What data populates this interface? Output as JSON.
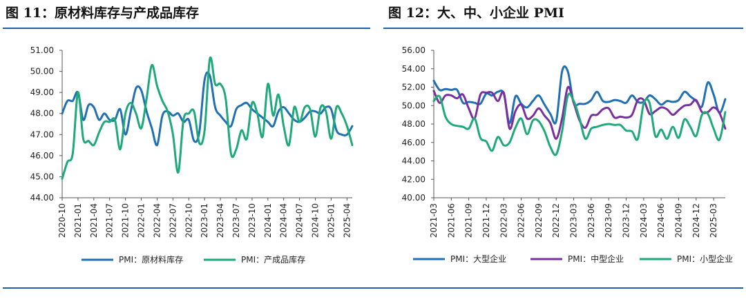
{
  "titles": {
    "left": "图 11：原材料库存与产成品库存",
    "right": "图 12：大、中、小企业 PMI"
  },
  "colors": {
    "blue": "#1f6fb5",
    "green": "#1ea97a",
    "purple": "#7a2fa0",
    "rule": "#1a5fa8"
  },
  "chart_data": [
    {
      "type": "line",
      "ylim": [
        44,
        51
      ],
      "y_ticks": [
        "44.00",
        "45.00",
        "46.00",
        "47.00",
        "48.00",
        "49.00",
        "50.00",
        "51.00"
      ],
      "x_tick_labels": [
        "2020-10",
        "2021-01",
        "2021-04",
        "2021-07",
        "2021-10",
        "2022-01",
        "2022-04",
        "2022-07",
        "2022-10",
        "2023-01",
        "2023-04",
        "2023-07",
        "2023-10",
        "2024-01",
        "2024-04",
        "2024-07",
        "2024-10",
        "2025-01",
        "2025-04"
      ],
      "x": [
        "2020-10",
        "2020-11",
        "2020-12",
        "2021-01",
        "2021-02",
        "2021-03",
        "2021-04",
        "2021-05",
        "2021-06",
        "2021-07",
        "2021-08",
        "2021-09",
        "2021-10",
        "2021-11",
        "2021-12",
        "2022-01",
        "2022-02",
        "2022-03",
        "2022-04",
        "2022-05",
        "2022-06",
        "2022-07",
        "2022-08",
        "2022-09",
        "2022-10",
        "2022-11",
        "2022-12",
        "2023-01",
        "2023-02",
        "2023-03",
        "2023-04",
        "2023-05",
        "2023-06",
        "2023-07",
        "2023-08",
        "2023-09",
        "2023-10",
        "2023-11",
        "2023-12",
        "2024-01",
        "2024-02",
        "2024-03",
        "2024-04",
        "2024-05",
        "2024-06",
        "2024-07",
        "2024-08",
        "2024-09",
        "2024-10",
        "2024-11",
        "2024-12",
        "2025-01",
        "2025-02",
        "2025-03",
        "2025-04",
        "2025-05"
      ],
      "series": [
        {
          "name": "PMI：原材料库存",
          "color": "#1f6fb5",
          "values": [
            48.0,
            48.6,
            48.6,
            49.0,
            47.7,
            48.4,
            48.3,
            47.7,
            48.0,
            47.7,
            47.7,
            48.2,
            47.0,
            48.1,
            49.2,
            49.1,
            48.1,
            47.3,
            46.5,
            47.9,
            48.1,
            47.9,
            48.0,
            47.6,
            47.7,
            46.7,
            47.1,
            49.6,
            49.8,
            48.3,
            47.9,
            47.6,
            47.4,
            48.2,
            48.4,
            48.5,
            48.2,
            48.0,
            47.8,
            47.6,
            47.4,
            48.1,
            48.3,
            48.0,
            47.7,
            47.6,
            47.8,
            48.1,
            48.1,
            48.0,
            48.3,
            48.2,
            47.2,
            47.0,
            47.0,
            47.4
          ]
        },
        {
          "name": "PMI：产成品库存",
          "color": "#1ea97a",
          "values": [
            44.9,
            45.7,
            46.1,
            49.0,
            46.8,
            46.7,
            46.5,
            47.1,
            47.6,
            47.6,
            47.7,
            46.3,
            48.0,
            48.5,
            48.0,
            47.3,
            48.7,
            50.3,
            49.3,
            48.6,
            48.1,
            47.0,
            45.2,
            47.7,
            48.0,
            48.1,
            46.6,
            47.2,
            50.6,
            49.4,
            49.4,
            48.7,
            46.1,
            46.3,
            47.2,
            46.8,
            48.5,
            48.0,
            46.9,
            49.4,
            47.9,
            48.9,
            47.4,
            46.5,
            48.3,
            47.6,
            48.3,
            48.2,
            46.9,
            48.3,
            48.1,
            46.8,
            48.3,
            48.0,
            47.4,
            46.5
          ]
        }
      ],
      "legend": "bottom"
    },
    {
      "type": "line",
      "ylim": [
        40,
        56
      ],
      "y_ticks": [
        "40.00",
        "42.00",
        "44.00",
        "46.00",
        "48.00",
        "50.00",
        "52.00",
        "54.00",
        "56.00"
      ],
      "x_tick_labels": [
        "2021-03",
        "2021-06",
        "2021-09",
        "2021-12",
        "2022-03",
        "2022-06",
        "2022-09",
        "2022-12",
        "2023-03",
        "2023-06",
        "2023-09",
        "2023-12",
        "2024-03",
        "2024-06",
        "2024-09",
        "2024-12",
        "2025-03"
      ],
      "x": [
        "2021-03",
        "2021-04",
        "2021-05",
        "2021-06",
        "2021-07",
        "2021-08",
        "2021-09",
        "2021-10",
        "2021-11",
        "2021-12",
        "2022-01",
        "2022-02",
        "2022-03",
        "2022-04",
        "2022-05",
        "2022-06",
        "2022-07",
        "2022-08",
        "2022-09",
        "2022-10",
        "2022-11",
        "2022-12",
        "2023-01",
        "2023-02",
        "2023-03",
        "2023-04",
        "2023-05",
        "2023-06",
        "2023-07",
        "2023-08",
        "2023-09",
        "2023-10",
        "2023-11",
        "2023-12",
        "2024-01",
        "2024-02",
        "2024-03",
        "2024-04",
        "2024-05",
        "2024-06",
        "2024-07",
        "2024-08",
        "2024-09",
        "2024-10",
        "2024-11",
        "2024-12",
        "2025-01",
        "2025-02",
        "2025-03",
        "2025-04",
        "2025-05"
      ],
      "series": [
        {
          "name": "PMI：大型企业",
          "color": "#1f6fb5",
          "values": [
            52.7,
            51.7,
            51.8,
            51.7,
            51.7,
            50.3,
            50.4,
            50.3,
            50.2,
            51.3,
            51.1,
            51.5,
            51.3,
            48.1,
            51.0,
            50.2,
            49.8,
            50.5,
            51.1,
            50.1,
            49.1,
            48.3,
            53.7,
            53.7,
            50.3,
            50.2,
            50.2,
            50.6,
            51.5,
            50.5,
            50.4,
            50.6,
            50.5,
            50.3,
            51.1,
            50.4,
            50.4,
            51.1,
            50.7,
            50.1,
            50.5,
            50.4,
            50.6,
            51.5,
            51.0,
            50.5,
            49.9,
            52.5,
            51.2,
            49.2,
            50.7
          ]
        },
        {
          "name": "PMI：中型企业",
          "color": "#7a2fa0",
          "values": [
            51.6,
            50.3,
            51.1,
            51.1,
            50.8,
            51.2,
            49.7,
            48.6,
            51.2,
            51.4,
            51.4,
            50.5,
            51.4,
            47.5,
            49.4,
            50.1,
            48.6,
            48.9,
            49.7,
            48.9,
            48.1,
            46.4,
            48.6,
            52.0,
            50.3,
            48.4,
            47.6,
            48.9,
            49.0,
            49.6,
            49.7,
            48.7,
            48.8,
            48.7,
            49.0,
            50.6,
            50.6,
            49.1,
            49.4,
            49.8,
            49.6,
            49.0,
            49.5,
            50.0,
            50.1,
            50.6,
            49.3,
            49.3,
            49.8,
            49.2,
            47.5
          ]
        },
        {
          "name": "PMI：小型企业",
          "color": "#1ea97a",
          "values": [
            50.5,
            51.0,
            48.8,
            48.0,
            47.8,
            47.7,
            47.5,
            48.6,
            46.5,
            46.1,
            45.1,
            46.6,
            45.7,
            46.0,
            47.6,
            48.6,
            46.9,
            48.4,
            48.3,
            47.2,
            45.5,
            44.7,
            47.2,
            51.1,
            50.5,
            48.6,
            46.4,
            47.5,
            47.7,
            47.9,
            48.0,
            47.9,
            47.9,
            47.3,
            47.2,
            46.4,
            50.2,
            50.3,
            46.7,
            47.4,
            46.4,
            47.7,
            46.5,
            48.5,
            47.7,
            46.7,
            49.0,
            49.1,
            47.5,
            46.3,
            49.3
          ]
        }
      ],
      "legend": "bottom"
    }
  ]
}
